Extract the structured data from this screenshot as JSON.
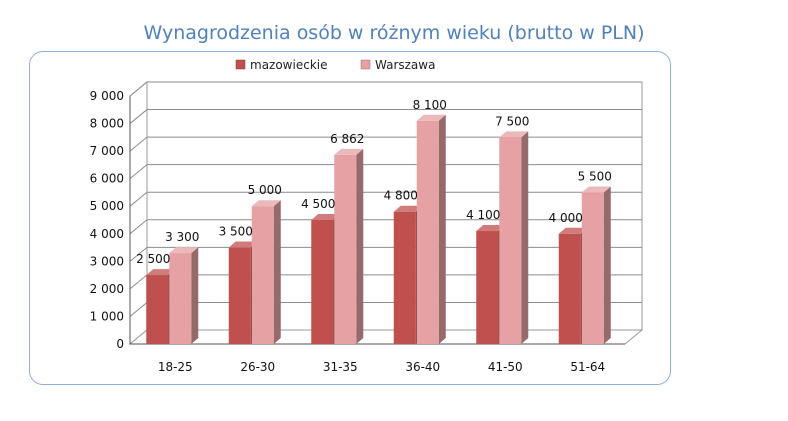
{
  "chart_data": {
    "type": "bar",
    "title": "Wynagrodzenia osób w różnym wieku (brutto w PLN)",
    "categories": [
      "18-25",
      "26-30",
      "31-35",
      "36-40",
      "41-50",
      "51-64"
    ],
    "series": [
      {
        "name": "mazowieckie",
        "values": [
          2500,
          3500,
          4500,
          4800,
          4100,
          4000
        ],
        "labels": [
          "2 500",
          "3 500",
          "4 500",
          "4 800",
          "4 100",
          "4 000"
        ],
        "color": "#C0504D"
      },
      {
        "name": "Warszawa",
        "values": [
          3300,
          5000,
          6862,
          8100,
          7500,
          5500
        ],
        "labels": [
          "3 300",
          "5 000",
          "6 862",
          "8 100",
          "7 500",
          "5 500"
        ],
        "color": "#E6A1A4"
      }
    ],
    "y_ticks": [
      "0",
      "1 000",
      "2 000",
      "3 000",
      "4 000",
      "5 000",
      "6 000",
      "7 000",
      "8 000",
      "9 000"
    ],
    "ylim": [
      0,
      9000
    ],
    "xlabel": "",
    "ylabel": "",
    "legend_position": "top-center",
    "grid": true
  }
}
